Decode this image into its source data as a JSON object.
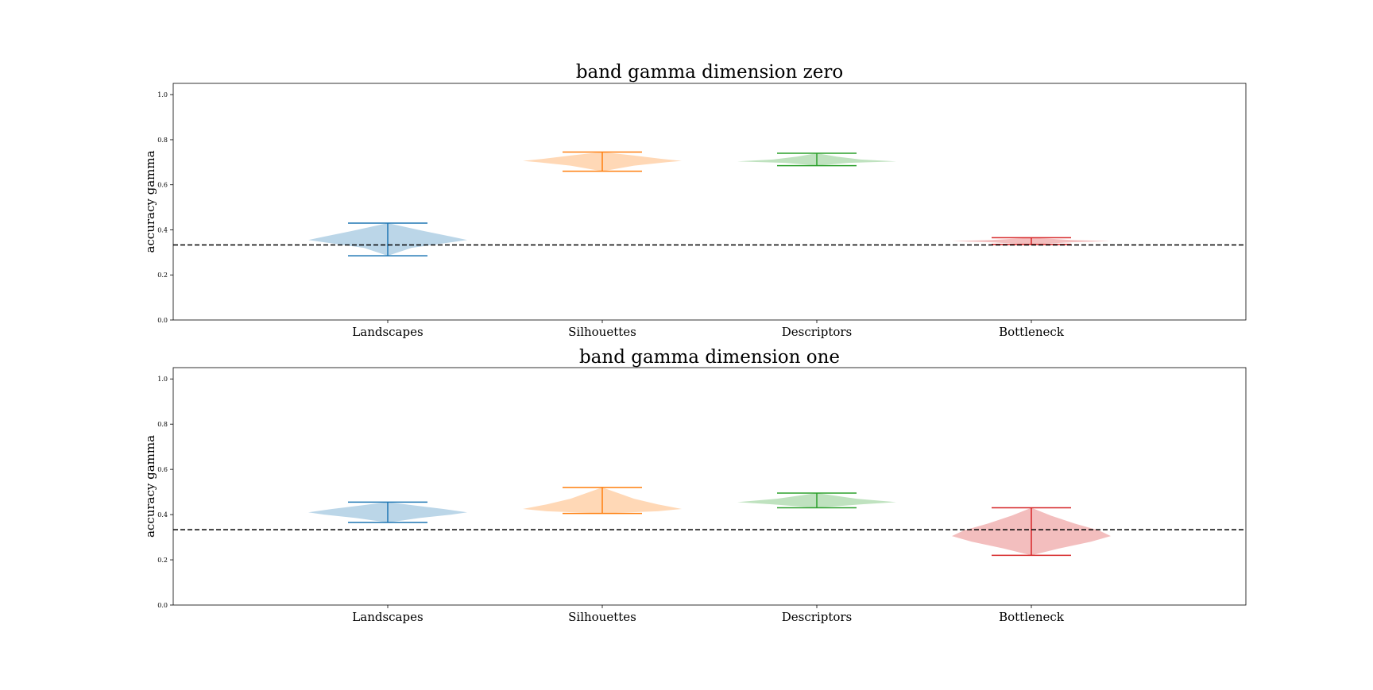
{
  "chart_data": [
    {
      "type": "violin",
      "title": "band gamma dimension zero",
      "ylabel": "accuracy gamma",
      "xlabel": "",
      "categories": [
        "Landscapes",
        "Silhouettes",
        "Descriptors",
        "Bottleneck"
      ],
      "ylim": [
        0.0,
        1.05
      ],
      "yticks": [
        "0.0",
        "0.2",
        "0.4",
        "0.6",
        "0.8",
        "1.0"
      ],
      "reference_line": 0.333,
      "grid": false,
      "series": [
        {
          "category": "Landscapes",
          "color": "#1f77b4",
          "min": 0.285,
          "max": 0.43,
          "profile": [
            [
              0.285,
              0.0
            ],
            [
              0.32,
              0.3
            ],
            [
              0.345,
              0.8
            ],
            [
              0.355,
              1.0
            ],
            [
              0.37,
              0.8
            ],
            [
              0.395,
              0.45
            ],
            [
              0.43,
              0.0
            ]
          ]
        },
        {
          "category": "Silhouettes",
          "color": "#ff7f0e",
          "min": 0.66,
          "max": 0.745,
          "profile": [
            [
              0.66,
              0.0
            ],
            [
              0.685,
              0.4
            ],
            [
              0.7,
              0.8
            ],
            [
              0.706,
              1.0
            ],
            [
              0.715,
              0.75
            ],
            [
              0.73,
              0.4
            ],
            [
              0.745,
              0.0
            ]
          ]
        },
        {
          "category": "Descriptors",
          "color": "#2ca02c",
          "min": 0.685,
          "max": 0.74,
          "profile": [
            [
              0.685,
              0.0
            ],
            [
              0.697,
              0.4
            ],
            [
              0.704,
              1.0
            ],
            [
              0.712,
              0.55
            ],
            [
              0.725,
              0.25
            ],
            [
              0.74,
              0.0
            ]
          ]
        },
        {
          "category": "Bottleneck",
          "color": "#d62728",
          "min": 0.335,
          "max": 0.365,
          "profile": [
            [
              0.335,
              0.0
            ],
            [
              0.345,
              0.5
            ],
            [
              0.35,
              1.0
            ],
            [
              0.355,
              0.5
            ],
            [
              0.365,
              0.0
            ]
          ]
        }
      ]
    },
    {
      "type": "violin",
      "title": "band gamma dimension one",
      "ylabel": "accuracy gamma",
      "xlabel": "",
      "categories": [
        "Landscapes",
        "Silhouettes",
        "Descriptors",
        "Bottleneck"
      ],
      "ylim": [
        0.0,
        1.05
      ],
      "yticks": [
        "0.0",
        "0.2",
        "0.4",
        "0.6",
        "0.8",
        "1.0"
      ],
      "reference_line": 0.333,
      "grid": false,
      "series": [
        {
          "category": "Landscapes",
          "color": "#1f77b4",
          "min": 0.365,
          "max": 0.455,
          "profile": [
            [
              0.365,
              0.0
            ],
            [
              0.385,
              0.4
            ],
            [
              0.4,
              0.8
            ],
            [
              0.41,
              1.0
            ],
            [
              0.425,
              0.7
            ],
            [
              0.44,
              0.35
            ],
            [
              0.455,
              0.0
            ]
          ]
        },
        {
          "category": "Silhouettes",
          "color": "#ff7f0e",
          "min": 0.405,
          "max": 0.52,
          "profile": [
            [
              0.405,
              0.0
            ],
            [
              0.415,
              0.7
            ],
            [
              0.425,
              1.0
            ],
            [
              0.445,
              0.7
            ],
            [
              0.47,
              0.4
            ],
            [
              0.495,
              0.2
            ],
            [
              0.52,
              0.0
            ]
          ]
        },
        {
          "category": "Descriptors",
          "color": "#2ca02c",
          "min": 0.43,
          "max": 0.495,
          "profile": [
            [
              0.43,
              0.0
            ],
            [
              0.445,
              0.55
            ],
            [
              0.455,
              1.0
            ],
            [
              0.47,
              0.5
            ],
            [
              0.485,
              0.2
            ],
            [
              0.495,
              0.0
            ]
          ]
        },
        {
          "category": "Bottleneck",
          "color": "#d62728",
          "min": 0.22,
          "max": 0.43,
          "profile": [
            [
              0.22,
              0.0
            ],
            [
              0.25,
              0.35
            ],
            [
              0.28,
              0.75
            ],
            [
              0.305,
              1.0
            ],
            [
              0.33,
              0.85
            ],
            [
              0.36,
              0.55
            ],
            [
              0.395,
              0.25
            ],
            [
              0.43,
              0.0
            ]
          ]
        }
      ]
    }
  ]
}
